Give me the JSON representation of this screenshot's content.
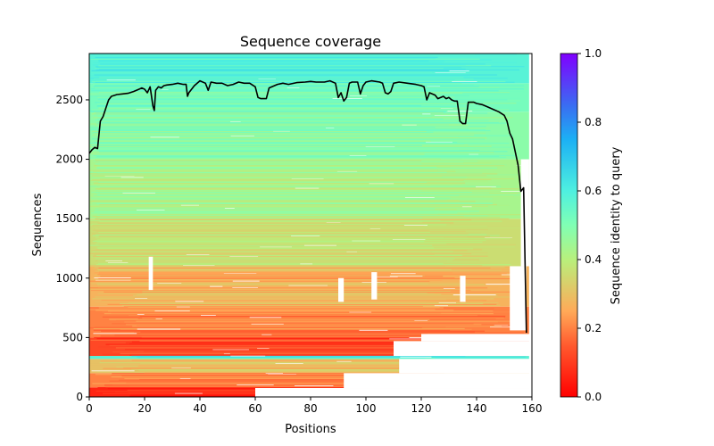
{
  "chart_data": {
    "type": "heatmap",
    "title": "Sequence coverage",
    "xlabel": "Positions",
    "ylabel": "Sequences",
    "xlim": [
      0,
      160
    ],
    "ylim": [
      0,
      2890
    ],
    "x_ticks": [
      0,
      20,
      40,
      60,
      80,
      100,
      120,
      140,
      160
    ],
    "y_ticks": [
      0,
      500,
      1000,
      1500,
      2000,
      2500
    ],
    "grid": false,
    "colormap": "rainbow_r",
    "colorbar": {
      "label": "Sequence identity to query",
      "range": [
        0,
        1
      ],
      "ticks": [
        "0.0",
        "0.2",
        "0.4",
        "0.6",
        "0.8",
        "1.0"
      ]
    },
    "identity_bands": [
      {
        "y_from": 0,
        "y_to": 80,
        "identity": 0.06
      },
      {
        "y_from": 80,
        "y_to": 200,
        "identity": 0.2
      },
      {
        "y_from": 200,
        "y_to": 320,
        "identity": 0.3
      },
      {
        "y_from": 320,
        "y_to": 345,
        "identity": 0.58
      },
      {
        "y_from": 345,
        "y_to": 500,
        "identity": 0.12
      },
      {
        "y_from": 500,
        "y_to": 760,
        "identity": 0.2
      },
      {
        "y_from": 760,
        "y_to": 1100,
        "identity": 0.27
      },
      {
        "y_from": 1100,
        "y_to": 1500,
        "identity": 0.36
      },
      {
        "y_from": 1500,
        "y_to": 2000,
        "identity": 0.43
      },
      {
        "y_from": 2000,
        "y_to": 2400,
        "identity": 0.48
      },
      {
        "y_from": 2400,
        "y_to": 2640,
        "identity": 0.52
      },
      {
        "y_from": 2640,
        "y_to": 2890,
        "identity": 0.58
      }
    ],
    "coverage_line": {
      "color": "#000000",
      "points": [
        [
          0,
          2050
        ],
        [
          1,
          2080
        ],
        [
          2,
          2100
        ],
        [
          3,
          2090
        ],
        [
          4,
          2320
        ],
        [
          5,
          2360
        ],
        [
          6,
          2430
        ],
        [
          7,
          2500
        ],
        [
          8,
          2530
        ],
        [
          10,
          2545
        ],
        [
          12,
          2550
        ],
        [
          14,
          2555
        ],
        [
          16,
          2570
        ],
        [
          18,
          2590
        ],
        [
          19,
          2600
        ],
        [
          20,
          2590
        ],
        [
          21,
          2560
        ],
        [
          22,
          2610
        ],
        [
          23,
          2450
        ],
        [
          23.5,
          2410
        ],
        [
          24,
          2580
        ],
        [
          25,
          2610
        ],
        [
          26,
          2600
        ],
        [
          27,
          2620
        ],
        [
          28,
          2625
        ],
        [
          30,
          2630
        ],
        [
          32,
          2640
        ],
        [
          34,
          2630
        ],
        [
          35,
          2630
        ],
        [
          35.5,
          2530
        ],
        [
          36,
          2560
        ],
        [
          38,
          2620
        ],
        [
          40,
          2660
        ],
        [
          42,
          2640
        ],
        [
          43,
          2580
        ],
        [
          44,
          2650
        ],
        [
          46,
          2640
        ],
        [
          48,
          2640
        ],
        [
          50,
          2620
        ],
        [
          52,
          2630
        ],
        [
          54,
          2650
        ],
        [
          56,
          2640
        ],
        [
          58,
          2640
        ],
        [
          60,
          2610
        ],
        [
          61,
          2520
        ],
        [
          62,
          2510
        ],
        [
          64,
          2510
        ],
        [
          65,
          2600
        ],
        [
          68,
          2630
        ],
        [
          70,
          2640
        ],
        [
          72,
          2630
        ],
        [
          75,
          2645
        ],
        [
          78,
          2650
        ],
        [
          80,
          2655
        ],
        [
          82,
          2650
        ],
        [
          85,
          2650
        ],
        [
          87,
          2660
        ],
        [
          89,
          2640
        ],
        [
          90,
          2520
        ],
        [
          91,
          2560
        ],
        [
          92,
          2490
        ],
        [
          93,
          2520
        ],
        [
          94,
          2640
        ],
        [
          95,
          2650
        ],
        [
          97,
          2650
        ],
        [
          98,
          2550
        ],
        [
          99,
          2620
        ],
        [
          100,
          2650
        ],
        [
          102,
          2660
        ],
        [
          105,
          2650
        ],
        [
          106,
          2640
        ],
        [
          107,
          2560
        ],
        [
          108,
          2550
        ],
        [
          109,
          2570
        ],
        [
          110,
          2640
        ],
        [
          112,
          2650
        ],
        [
          115,
          2640
        ],
        [
          118,
          2630
        ],
        [
          120,
          2620
        ],
        [
          121,
          2610
        ],
        [
          122,
          2500
        ],
        [
          123,
          2560
        ],
        [
          125,
          2540
        ],
        [
          126,
          2510
        ],
        [
          128,
          2530
        ],
        [
          129,
          2510
        ],
        [
          130,
          2520
        ],
        [
          131,
          2500
        ],
        [
          132,
          2490
        ],
        [
          133,
          2490
        ],
        [
          134,
          2320
        ],
        [
          135,
          2300
        ],
        [
          136,
          2300
        ],
        [
          137,
          2480
        ],
        [
          139,
          2480
        ],
        [
          140,
          2470
        ],
        [
          142,
          2460
        ],
        [
          144,
          2440
        ],
        [
          146,
          2420
        ],
        [
          148,
          2400
        ],
        [
          150,
          2370
        ],
        [
          151,
          2320
        ],
        [
          152,
          2220
        ],
        [
          153,
          2170
        ],
        [
          154,
          2060
        ],
        [
          155,
          1950
        ],
        [
          156,
          1730
        ],
        [
          157,
          1760
        ],
        [
          158,
          540
        ]
      ]
    }
  }
}
